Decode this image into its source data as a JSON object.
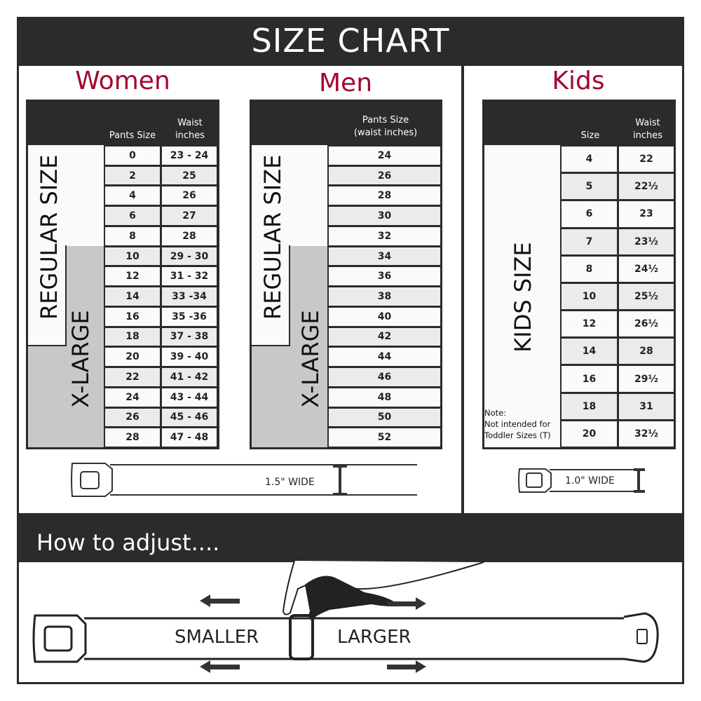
{
  "title": "SIZE CHART",
  "colors": {
    "dark": "#2b2b2b",
    "accent": "#a3072f",
    "row_alt": "#ebebeb",
    "xlarge": "#c8c8c8"
  },
  "women": {
    "title": "Women",
    "col_headers": [
      "Pants Size",
      "Waist\ninches"
    ],
    "regular_label": "REGULAR SIZE",
    "xlarge_label": "X-LARGE",
    "rows": [
      [
        "0",
        "23 - 24"
      ],
      [
        "2",
        "25"
      ],
      [
        "4",
        "26"
      ],
      [
        "6",
        "27"
      ],
      [
        "8",
        "28"
      ],
      [
        "10",
        "29 - 30"
      ],
      [
        "12",
        "31 - 32"
      ],
      [
        "14",
        "33 -34"
      ],
      [
        "16",
        "35 -36"
      ],
      [
        "18",
        "37 - 38"
      ],
      [
        "20",
        "39 - 40"
      ],
      [
        "22",
        "41 - 42"
      ],
      [
        "24",
        "43 - 44"
      ],
      [
        "26",
        "45 - 46"
      ],
      [
        "28",
        "47 - 48"
      ]
    ],
    "belt_width": "1.5\" WIDE"
  },
  "men": {
    "title": "Men",
    "col_header": "Pants Size\n(waist inches)",
    "regular_label": "REGULAR SIZE",
    "xlarge_label": "X-LARGE",
    "rows": [
      "24",
      "26",
      "28",
      "30",
      "32",
      "34",
      "36",
      "38",
      "40",
      "42",
      "44",
      "46",
      "48",
      "50",
      "52"
    ]
  },
  "kids": {
    "title": "Kids",
    "col_headers": [
      "Size",
      "Waist\ninches"
    ],
    "label": "KIDS SIZE",
    "note": "Note:\nNot intended for\nToddler Sizes (T)",
    "rows": [
      [
        "4",
        "22"
      ],
      [
        "5",
        "22½"
      ],
      [
        "6",
        "23"
      ],
      [
        "7",
        "23½"
      ],
      [
        "8",
        "24½"
      ],
      [
        "10",
        "25½"
      ],
      [
        "12",
        "26½"
      ],
      [
        "14",
        "28"
      ],
      [
        "16",
        "29½"
      ],
      [
        "18",
        "31"
      ],
      [
        "20",
        "32½"
      ]
    ],
    "belt_width": "1.0\" WIDE"
  },
  "adjust": {
    "title": "How to adjust....",
    "smaller": "SMALLER",
    "larger": "LARGER"
  }
}
